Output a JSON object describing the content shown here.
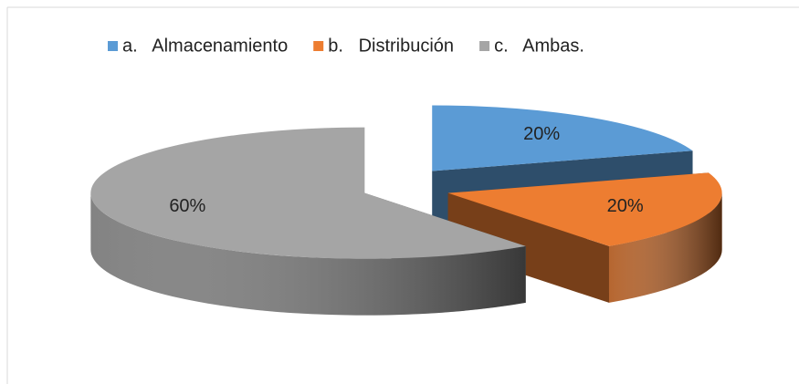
{
  "chart_data": {
    "type": "pie3d",
    "categories": [
      "a.   Almacenamiento",
      "b.   Distribución",
      "c.   Ambas."
    ],
    "values": [
      20,
      20,
      60
    ],
    "value_labels": [
      "20%",
      "20%",
      "60%"
    ],
    "colors": [
      "#5b9bd5",
      "#ed7d31",
      "#a5a5a5"
    ],
    "legend": "top"
  }
}
